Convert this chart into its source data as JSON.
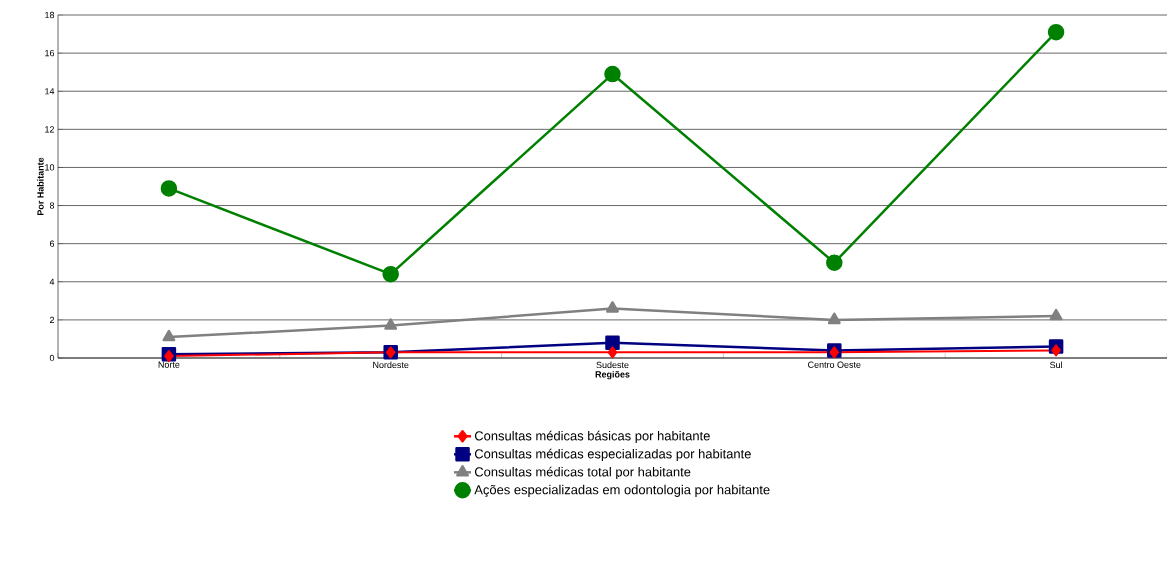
{
  "chart_data": {
    "type": "line",
    "xlabel": "Regiões",
    "ylabel": "Por Habitante",
    "categories": [
      "Norte",
      "Nordeste",
      "Sudeste",
      "Centro Oeste",
      "Sul"
    ],
    "series": [
      {
        "name": "Consultas médicas básicas por habitante",
        "color": "#ff0000",
        "marker": "diamond",
        "values": [
          0.1,
          0.3,
          0.3,
          0.3,
          0.4
        ]
      },
      {
        "name": "Consultas médicas especializadas por habitante",
        "color": "#000080",
        "marker": "square",
        "values": [
          0.2,
          0.3,
          0.8,
          0.4,
          0.6
        ]
      },
      {
        "name": "Consultas médicas total por habitante",
        "color": "#808080",
        "marker": "triangle",
        "values": [
          1.1,
          1.7,
          2.6,
          2.0,
          2.2
        ]
      },
      {
        "name": "Ações especializadas em odontologia por habitante",
        "color": "#008000",
        "marker": "circle",
        "values": [
          8.9,
          4.4,
          14.9,
          5.0,
          17.1
        ]
      }
    ],
    "ylim": [
      0,
      18
    ],
    "yticks": [
      0,
      2,
      4,
      6,
      8,
      10,
      12,
      14,
      16,
      18
    ],
    "grid": "y",
    "legend": "bottom",
    "line_style": "solid"
  }
}
